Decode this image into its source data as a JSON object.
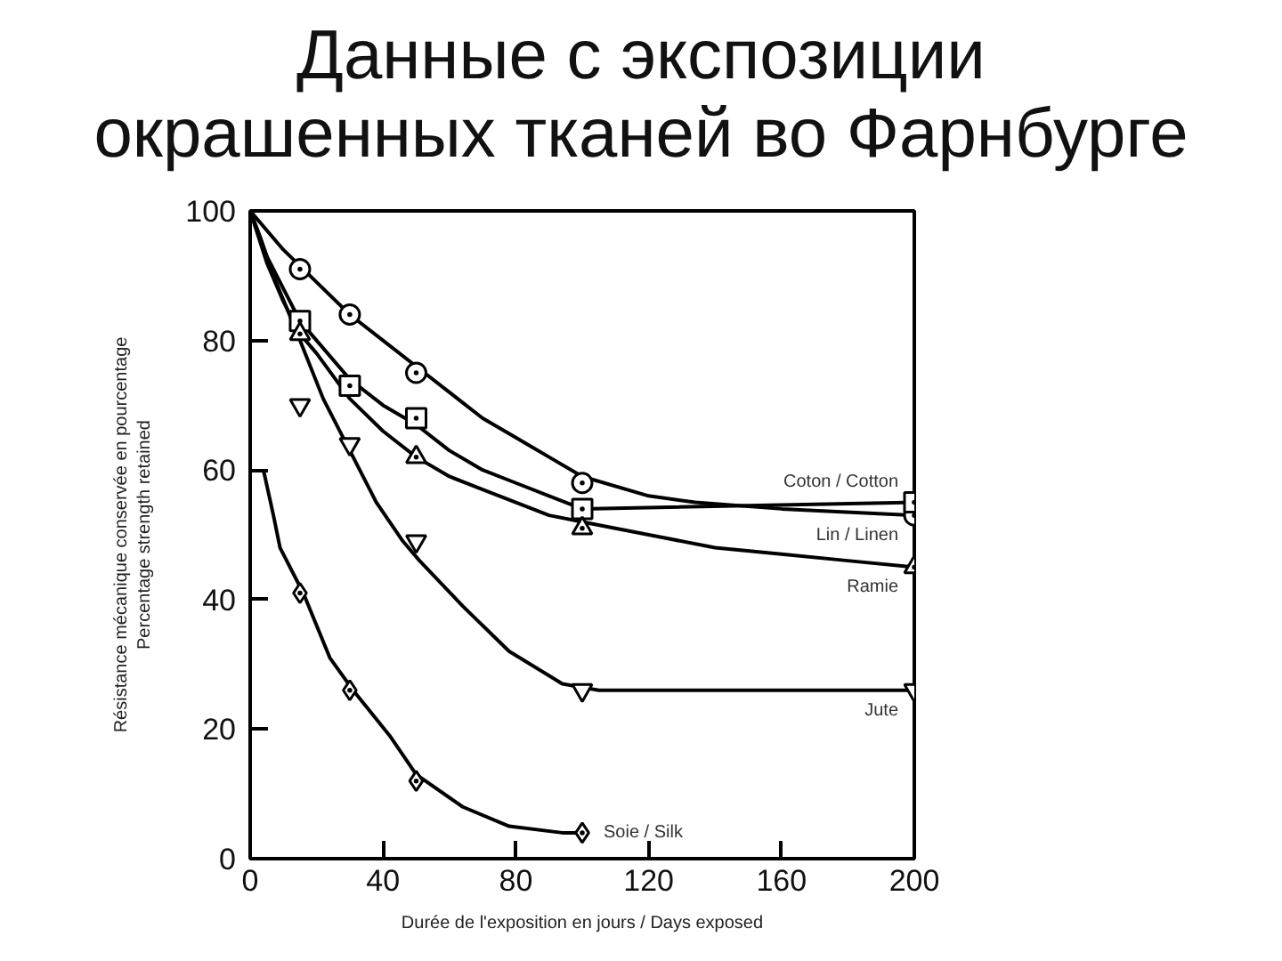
{
  "chart_data": {
    "type": "scatter",
    "title": "Данные с экспозиции окрашенных тканей во Фарнбурге",
    "xlabel": "Durée de l'exposition en jours / Days exposed",
    "ylabel": "Résistance mécanique conservée en pourcentage\nPercentage strength retained",
    "xlim": [
      0,
      200
    ],
    "ylim": [
      0,
      100
    ],
    "xticks": [
      0,
      40,
      80,
      120,
      160,
      200
    ],
    "yticks": [
      0,
      20,
      40,
      60,
      80,
      100
    ],
    "grid": false,
    "legend": false,
    "line_style": "solid",
    "series": [
      {
        "type": "line",
        "color": "#000000",
        "marker": "none",
        "x": [
          0,
          10,
          20,
          30,
          40,
          50,
          60,
          70,
          80,
          90,
          100,
          120,
          134,
          160,
          200
        ],
        "values": [
          100,
          94,
          89,
          84,
          80,
          76,
          72,
          68,
          65,
          62,
          59,
          56,
          55,
          54,
          53
        ]
      },
      {
        "type": "line",
        "color": "#000000",
        "marker": "none",
        "x": [
          0,
          5,
          10,
          15,
          20,
          30,
          40,
          50,
          60,
          70,
          80,
          90,
          100,
          200
        ],
        "values": [
          100,
          93,
          88,
          83,
          80,
          74,
          70,
          67,
          63,
          60,
          58,
          56,
          54,
          55
        ]
      },
      {
        "type": "line",
        "color": "#000000",
        "marker": "none",
        "x": [
          0,
          5,
          10,
          15,
          20,
          30,
          40,
          50,
          60,
          70,
          80,
          90,
          100,
          120,
          140,
          160,
          180,
          200
        ],
        "values": [
          100,
          92,
          86,
          81,
          78,
          71,
          66,
          62,
          59,
          57,
          55,
          53,
          52,
          50,
          48,
          47,
          46,
          45
        ]
      },
      {
        "type": "line",
        "color": "#000000",
        "marker": "none",
        "x": [
          0,
          3,
          7,
          15,
          22,
          30,
          38,
          46,
          51,
          64,
          78,
          94,
          105,
          120,
          200
        ],
        "values": [
          100,
          96,
          90,
          80,
          71,
          63,
          55,
          49,
          46,
          39,
          32,
          27,
          26,
          26,
          26
        ]
      },
      {
        "type": "line",
        "color": "#000000",
        "marker": "none",
        "x": [
          4,
          7,
          9,
          16,
          24,
          31,
          42,
          50,
          64,
          78,
          94,
          100
        ],
        "values": [
          60,
          53,
          48,
          41,
          31,
          26,
          19,
          13,
          8,
          5,
          4,
          4
        ]
      },
      {
        "name": "Lin / Linen",
        "marker": "circle",
        "color": "#000000",
        "x": [
          15,
          30,
          50,
          100,
          200
        ],
        "values": [
          91,
          84,
          75,
          58,
          53
        ]
      },
      {
        "name": "Coton / Cotton",
        "marker": "square",
        "color": "#000000",
        "x": [
          15,
          30,
          50,
          100,
          200
        ],
        "values": [
          83,
          73,
          68,
          54,
          55
        ]
      },
      {
        "name": "Ramie",
        "marker": "triangle",
        "color": "#000000",
        "x": [
          15,
          50,
          100,
          200
        ],
        "values": [
          81,
          62,
          51,
          45
        ]
      },
      {
        "name": "Jute",
        "marker": "triangle_down",
        "color": "#000000",
        "x": [
          15,
          30,
          50,
          100,
          200
        ],
        "values": [
          70,
          64,
          49,
          26,
          26
        ]
      },
      {
        "name": "Soie / Silk",
        "marker": "diamond",
        "color": "#000000",
        "x": [
          15,
          30,
          50,
          100
        ],
        "values": [
          41,
          26,
          12,
          4
        ]
      }
    ]
  }
}
